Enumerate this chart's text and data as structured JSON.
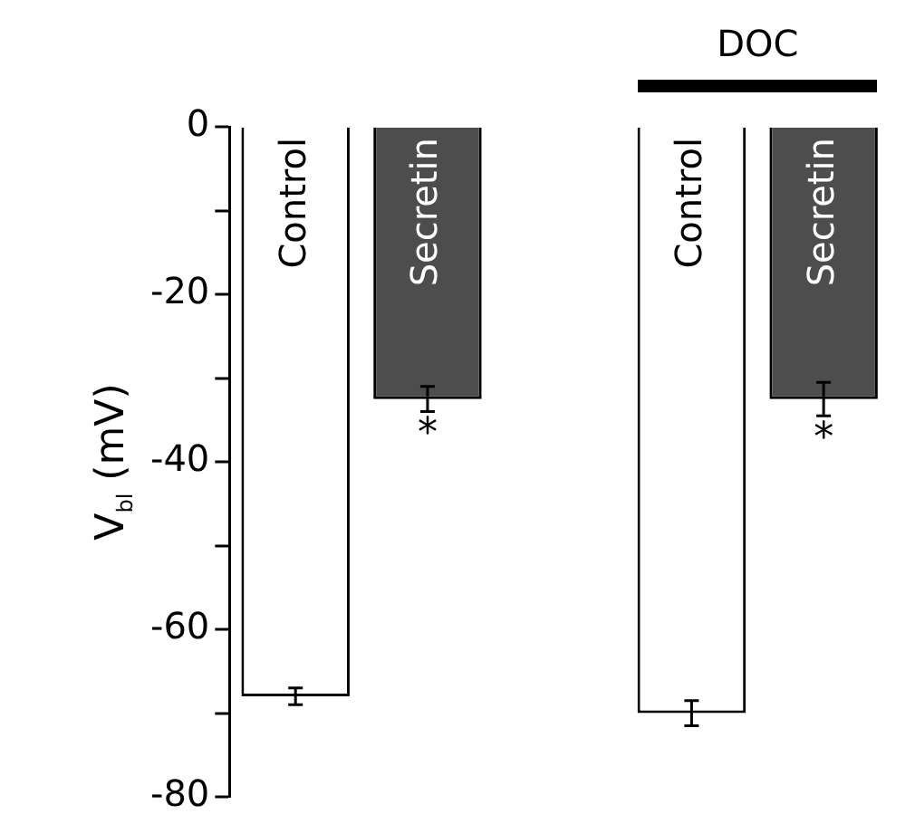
{
  "chart_data": {
    "type": "bar",
    "categories": [
      "Control",
      "Secretin",
      null,
      "Control",
      "Secretin"
    ],
    "ylabel": "V$_{bl}$ (mV)",
    "values": [
      -68,
      -32.5,
      null,
      -70,
      -32.5
    ],
    "colors": [
      "#ffffff",
      "#4d4d4d",
      "#ffffff",
      "#ffffff",
      "#4d4d4d"
    ],
    "errors": [
      1,
      1.5,
      null,
      1.5,
      2
    ],
    "value_labels": [
      null,
      "*",
      null,
      null,
      "*"
    ],
    "annotations": [
      "DOC"
    ],
    "ylim": [
      -80,
      0
    ],
    "yticks": [
      -80,
      {
        "value": -70,
        "label": null
      },
      -60,
      {
        "value": -50,
        "label": null
      },
      -40,
      {
        "value": -30,
        "label": null
      },
      -20,
      {
        "value": -10,
        "label": null
      },
      0
    ],
    "grid": false,
    "legend": false
  }
}
